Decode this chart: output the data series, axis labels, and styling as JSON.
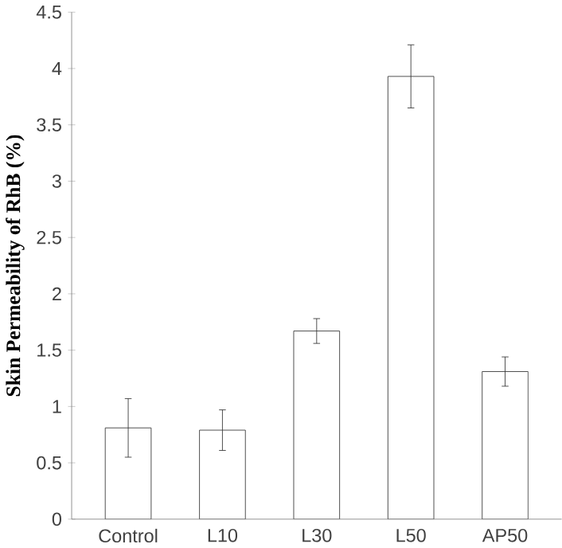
{
  "chart_data": {
    "type": "bar",
    "ylabel": "Skin Permeability of RhB (%)",
    "categories": [
      "Control",
      "L10",
      "L30",
      "L50",
      "AP50"
    ],
    "values": [
      0.81,
      0.79,
      1.67,
      3.93,
      1.31
    ],
    "errors": [
      0.26,
      0.18,
      0.11,
      0.28,
      0.13
    ],
    "color": "#ffffff",
    "ylim": [
      0,
      4.5
    ],
    "yticks": [
      0,
      0.5,
      1,
      1.5,
      2,
      2.5,
      3,
      3.5,
      4,
      4.5
    ],
    "grid": false
  }
}
